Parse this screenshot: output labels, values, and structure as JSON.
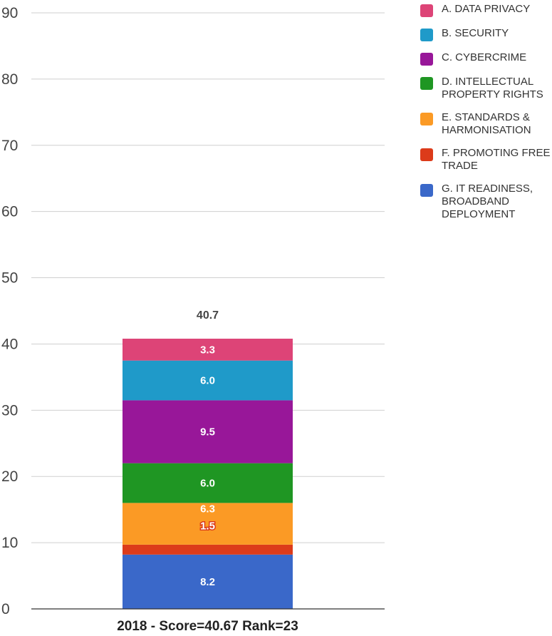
{
  "chart_data": {
    "type": "bar",
    "stacked": true,
    "categories": [
      "2018 - Score=40.67 Rank=23"
    ],
    "series": [
      {
        "name": "A. DATA PRIVACY",
        "values": [
          3.3
        ],
        "color": "#dd4477",
        "label": "3.3"
      },
      {
        "name": "B. SECURITY",
        "values": [
          6.0
        ],
        "color": "#1f9ac9",
        "label": "6.0"
      },
      {
        "name": "C. CYBERCRIME",
        "values": [
          9.5
        ],
        "color": "#981799",
        "label": "9.5"
      },
      {
        "name": "D. INTELLECTUAL PROPERTY RIGHTS",
        "values": [
          6.0
        ],
        "color": "#1f9623",
        "label": "6.0"
      },
      {
        "name": "E. STANDARDS & HARMONISATION",
        "values": [
          6.3
        ],
        "color": "#fb9a25",
        "label": "6.3"
      },
      {
        "name": "F. PROMOTING FREE TRADE",
        "values": [
          1.5
        ],
        "color": "#dc3b1a",
        "label": "1.5"
      },
      {
        "name": "G. IT READINESS, BROADBAND DEPLOYMENT",
        "values": [
          8.2
        ],
        "color": "#3a68c9",
        "label": "8.2"
      }
    ],
    "total_label": "40.7",
    "yticks": [
      "0",
      "10",
      "20",
      "30",
      "40",
      "50",
      "60",
      "70",
      "80",
      "90"
    ],
    "ylim": [
      0,
      90
    ],
    "grid": true,
    "legend_position": "right"
  }
}
